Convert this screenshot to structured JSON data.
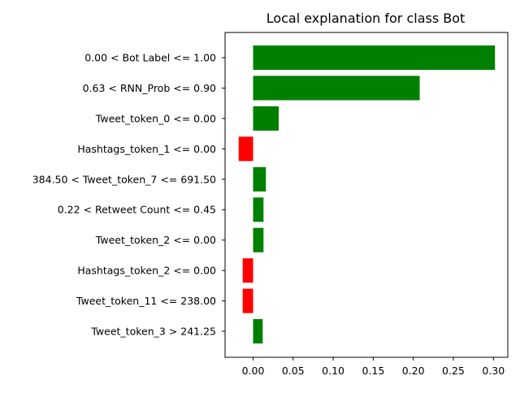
{
  "chart_data": {
    "type": "bar",
    "orientation": "horizontal",
    "title": "Local explanation for class Bot",
    "categories": [
      "0.00 < Bot Label <= 1.00",
      "0.63 < RNN_Prob <= 0.90",
      "Tweet_token_0 <= 0.00",
      "Hashtags_token_1 <= 0.00",
      "384.50 < Tweet_token_7 <= 691.50",
      "0.22 < Retweet Count <= 0.45",
      "Tweet_token_2 <= 0.00",
      "Hashtags_token_2 <= 0.00",
      "Tweet_token_11 <= 238.00",
      "Tweet_token_3 > 241.25"
    ],
    "values": [
      0.302,
      0.208,
      0.032,
      -0.018,
      0.016,
      0.013,
      0.013,
      -0.013,
      -0.013,
      0.012
    ],
    "xlim": [
      -0.035,
      0.318
    ],
    "xticks": [
      0.0,
      0.05,
      0.1,
      0.15,
      0.2,
      0.25,
      0.3
    ],
    "xtick_labels": [
      "0.00",
      "0.05",
      "0.10",
      "0.15",
      "0.20",
      "0.25",
      "0.30"
    ],
    "xlabel": "",
    "ylabel": "",
    "grid": false,
    "colors": {
      "positive": "#008000",
      "negative": "#ff0000",
      "axis": "#000000",
      "text": "#000000"
    }
  }
}
